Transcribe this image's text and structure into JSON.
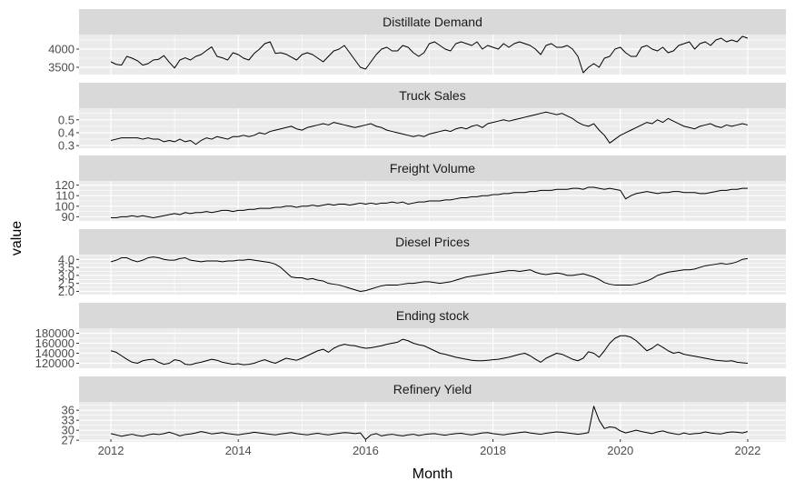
{
  "chart_data": {
    "type": "line",
    "layout": "faceted-vertical",
    "xlabel": "Month",
    "ylabel": "value",
    "xlim": [
      2011.5,
      2022.6
    ],
    "x_ticks": [
      2012,
      2014,
      2016,
      2018,
      2020,
      2022
    ],
    "x_tick_labels": [
      "2012",
      "2014",
      "2016",
      "2018",
      "2020",
      "2022"
    ],
    "x_start": 2012.0,
    "x_step": 0.0833333,
    "colors": {
      "panel": "#EBEBEB",
      "strip": "#D9D9D9",
      "grid": "#FFFFFF",
      "line": "#000000",
      "text": "#4D4D4D"
    },
    "panels": [
      {
        "title": "Distillate Demand",
        "ylim": [
          3300,
          4400
        ],
        "y_ticks": [
          3500,
          4000
        ],
        "y_tick_labels": [
          "3500",
          "4000"
        ],
        "values": [
          3650,
          3580,
          3560,
          3800,
          3750,
          3680,
          3560,
          3600,
          3700,
          3720,
          3820,
          3640,
          3480,
          3700,
          3760,
          3700,
          3800,
          3850,
          3960,
          4060,
          3800,
          3760,
          3700,
          3900,
          3850,
          3750,
          3700,
          3880,
          4000,
          4150,
          4200,
          3880,
          3900,
          3860,
          3780,
          3700,
          3850,
          3900,
          3850,
          3750,
          3650,
          3800,
          3950,
          4000,
          4100,
          3900,
          3700,
          3500,
          3450,
          3650,
          3850,
          4000,
          4050,
          3950,
          3950,
          4100,
          4050,
          3900,
          3800,
          3900,
          4150,
          4200,
          4100,
          4000,
          3950,
          4150,
          4200,
          4150,
          4100,
          4200,
          4000,
          4100,
          4050,
          4000,
          4150,
          4050,
          4150,
          4200,
          4150,
          4100,
          4000,
          3850,
          4100,
          4150,
          4050,
          4050,
          4100,
          4000,
          3800,
          3350,
          3500,
          3600,
          3500,
          3750,
          3800,
          4000,
          4050,
          3900,
          3800,
          3800,
          4050,
          4100,
          4000,
          3950,
          4050,
          3900,
          3950,
          4100,
          4150,
          4200,
          4000,
          4150,
          4200,
          4100,
          4250,
          4300,
          4200,
          4250,
          4200,
          4350,
          4300
        ]
      },
      {
        "title": "Truck Sales",
        "ylim": [
          0.28,
          0.59
        ],
        "y_ticks": [
          0.3,
          0.4,
          0.5
        ],
        "y_tick_labels": [
          "0.3",
          "0.4",
          "0.5"
        ],
        "values": [
          0.34,
          0.35,
          0.36,
          0.36,
          0.36,
          0.36,
          0.35,
          0.36,
          0.35,
          0.35,
          0.33,
          0.34,
          0.33,
          0.35,
          0.33,
          0.34,
          0.31,
          0.34,
          0.36,
          0.35,
          0.37,
          0.36,
          0.35,
          0.37,
          0.37,
          0.38,
          0.37,
          0.38,
          0.4,
          0.39,
          0.41,
          0.42,
          0.43,
          0.44,
          0.45,
          0.43,
          0.42,
          0.44,
          0.45,
          0.46,
          0.47,
          0.46,
          0.48,
          0.47,
          0.46,
          0.45,
          0.44,
          0.45,
          0.46,
          0.47,
          0.45,
          0.44,
          0.42,
          0.41,
          0.4,
          0.39,
          0.38,
          0.37,
          0.38,
          0.37,
          0.39,
          0.4,
          0.41,
          0.42,
          0.41,
          0.43,
          0.44,
          0.43,
          0.45,
          0.46,
          0.44,
          0.47,
          0.48,
          0.49,
          0.5,
          0.49,
          0.5,
          0.51,
          0.52,
          0.53,
          0.54,
          0.55,
          0.56,
          0.55,
          0.54,
          0.55,
          0.53,
          0.51,
          0.48,
          0.46,
          0.45,
          0.47,
          0.42,
          0.38,
          0.32,
          0.35,
          0.38,
          0.4,
          0.42,
          0.44,
          0.46,
          0.48,
          0.47,
          0.5,
          0.48,
          0.51,
          0.49,
          0.47,
          0.45,
          0.44,
          0.43,
          0.45,
          0.46,
          0.47,
          0.45,
          0.44,
          0.46,
          0.45,
          0.46,
          0.47,
          0.46
        ]
      },
      {
        "title": "Freight Volume",
        "ylim": [
          86,
          124
        ],
        "y_ticks": [
          90,
          100,
          110,
          120
        ],
        "y_tick_labels": [
          "90",
          "100",
          "110",
          "120"
        ],
        "values": [
          89,
          89,
          90,
          90,
          91,
          90,
          91,
          90,
          89,
          90,
          91,
          92,
          93,
          92,
          94,
          93,
          94,
          94,
          95,
          94,
          95,
          96,
          96,
          95,
          96,
          96,
          97,
          97,
          98,
          98,
          98,
          99,
          99,
          100,
          100,
          99,
          100,
          100,
          101,
          100,
          101,
          102,
          101,
          102,
          102,
          101,
          102,
          103,
          102,
          103,
          102,
          103,
          103,
          104,
          103,
          104,
          102,
          103,
          104,
          104,
          105,
          105,
          105,
          106,
          106,
          107,
          108,
          108,
          109,
          109,
          110,
          110,
          111,
          111,
          112,
          112,
          113,
          113,
          113,
          114,
          114,
          115,
          115,
          115,
          116,
          116,
          116,
          117,
          117,
          116,
          118,
          118,
          117,
          116,
          117,
          116,
          115,
          107,
          110,
          112,
          113,
          114,
          113,
          112,
          113,
          113,
          114,
          114,
          113,
          113,
          113,
          112,
          112,
          113,
          114,
          115,
          115,
          116,
          116,
          117,
          117
        ]
      },
      {
        "title": "Diesel Prices",
        "ylim": [
          1.8,
          4.3
        ],
        "y_ticks": [
          2.0,
          2.5,
          3.0,
          3.5,
          4.0
        ],
        "y_tick_labels": [
          "2.0",
          "2.5",
          "3.0",
          "3.5",
          "4.0"
        ],
        "values": [
          3.85,
          3.95,
          4.1,
          4.1,
          3.95,
          3.85,
          3.95,
          4.1,
          4.15,
          4.1,
          4.0,
          3.95,
          3.95,
          4.05,
          4.1,
          3.95,
          3.9,
          3.85,
          3.9,
          3.9,
          3.9,
          3.85,
          3.9,
          3.9,
          3.95,
          3.95,
          4.0,
          3.95,
          3.9,
          3.85,
          3.8,
          3.7,
          3.5,
          3.2,
          2.9,
          2.85,
          2.85,
          2.75,
          2.8,
          2.7,
          2.65,
          2.5,
          2.45,
          2.4,
          2.3,
          2.2,
          2.1,
          2.0,
          2.05,
          2.15,
          2.25,
          2.35,
          2.4,
          2.4,
          2.4,
          2.45,
          2.5,
          2.5,
          2.55,
          2.6,
          2.6,
          2.55,
          2.5,
          2.55,
          2.6,
          2.7,
          2.8,
          2.9,
          2.95,
          3.0,
          3.05,
          3.1,
          3.15,
          3.2,
          3.25,
          3.3,
          3.3,
          3.25,
          3.3,
          3.35,
          3.2,
          3.1,
          3.05,
          3.1,
          3.15,
          3.1,
          3.0,
          3.0,
          3.05,
          3.1,
          3.0,
          2.9,
          2.75,
          2.55,
          2.45,
          2.4,
          2.4,
          2.4,
          2.4,
          2.45,
          2.55,
          2.65,
          2.8,
          3.0,
          3.1,
          3.2,
          3.25,
          3.3,
          3.35,
          3.35,
          3.4,
          3.5,
          3.6,
          3.65,
          3.7,
          3.75,
          3.7,
          3.75,
          3.85,
          4.0,
          4.05
        ]
      },
      {
        "title": "Ending stock",
        "ylim": [
          110000,
          190000
        ],
        "y_ticks": [
          120000,
          140000,
          160000,
          180000
        ],
        "y_tick_labels": [
          "120000",
          "140000",
          "160000",
          "180000"
        ],
        "values": [
          145000,
          142000,
          135000,
          128000,
          122000,
          120000,
          125000,
          127000,
          128000,
          122000,
          118000,
          120000,
          127000,
          125000,
          118000,
          117000,
          120000,
          122000,
          125000,
          128000,
          126000,
          122000,
          120000,
          118000,
          119000,
          117000,
          118000,
          120000,
          124000,
          127000,
          123000,
          120000,
          125000,
          130000,
          128000,
          126000,
          130000,
          135000,
          140000,
          145000,
          148000,
          142000,
          150000,
          155000,
          158000,
          156000,
          155000,
          152000,
          150000,
          151000,
          153000,
          155000,
          158000,
          160000,
          162000,
          168000,
          165000,
          160000,
          157000,
          155000,
          150000,
          145000,
          140000,
          138000,
          135000,
          132000,
          130000,
          128000,
          126000,
          125000,
          125000,
          126000,
          127000,
          128000,
          130000,
          132000,
          135000,
          138000,
          140000,
          135000,
          128000,
          122000,
          130000,
          135000,
          140000,
          138000,
          133000,
          128000,
          125000,
          130000,
          143000,
          140000,
          132000,
          145000,
          160000,
          170000,
          175000,
          175000,
          172000,
          165000,
          155000,
          145000,
          150000,
          158000,
          152000,
          145000,
          140000,
          142000,
          138000,
          136000,
          134000,
          132000,
          130000,
          128000,
          126000,
          125000,
          124000,
          125000,
          122000,
          121000,
          120000
        ]
      },
      {
        "title": "Refinery Yield",
        "ylim": [
          26.5,
          38.5
        ],
        "y_ticks": [
          27,
          30,
          33,
          36
        ],
        "y_tick_labels": [
          "27",
          "30",
          "33",
          "36"
        ],
        "values": [
          29.0,
          28.6,
          28.2,
          28.5,
          28.8,
          28.4,
          28.2,
          28.6,
          28.9,
          28.7,
          29.0,
          29.4,
          28.9,
          28.3,
          28.7,
          28.9,
          29.2,
          29.6,
          29.3,
          28.9,
          29.1,
          29.3,
          29.0,
          28.8,
          28.6,
          28.9,
          29.1,
          29.4,
          29.2,
          29.0,
          28.8,
          28.6,
          28.9,
          29.1,
          29.3,
          29.0,
          28.8,
          28.6,
          28.9,
          29.1,
          28.8,
          28.6,
          28.9,
          29.1,
          29.3,
          29.2,
          29.0,
          29.2,
          27.2,
          28.6,
          29.0,
          28.3,
          28.6,
          28.8,
          28.5,
          28.3,
          28.6,
          28.8,
          28.4,
          28.7,
          28.9,
          29.0,
          28.7,
          28.5,
          28.8,
          29.0,
          29.1,
          28.8,
          28.6,
          28.9,
          29.2,
          29.3,
          29.0,
          28.8,
          28.6,
          28.9,
          29.1,
          29.3,
          29.5,
          29.2,
          29.0,
          28.8,
          29.1,
          29.3,
          29.5,
          29.4,
          29.2,
          29.0,
          28.8,
          29.0,
          29.3,
          37.2,
          33.0,
          30.5,
          31.0,
          30.8,
          29.8,
          29.2,
          29.6,
          30.0,
          29.6,
          29.3,
          29.0,
          29.5,
          29.8,
          29.3,
          29.0,
          28.7,
          29.2,
          28.8,
          29.0,
          29.1,
          29.5,
          29.2,
          29.0,
          28.9,
          29.3,
          29.5,
          29.4,
          29.2,
          29.6
        ]
      }
    ]
  }
}
